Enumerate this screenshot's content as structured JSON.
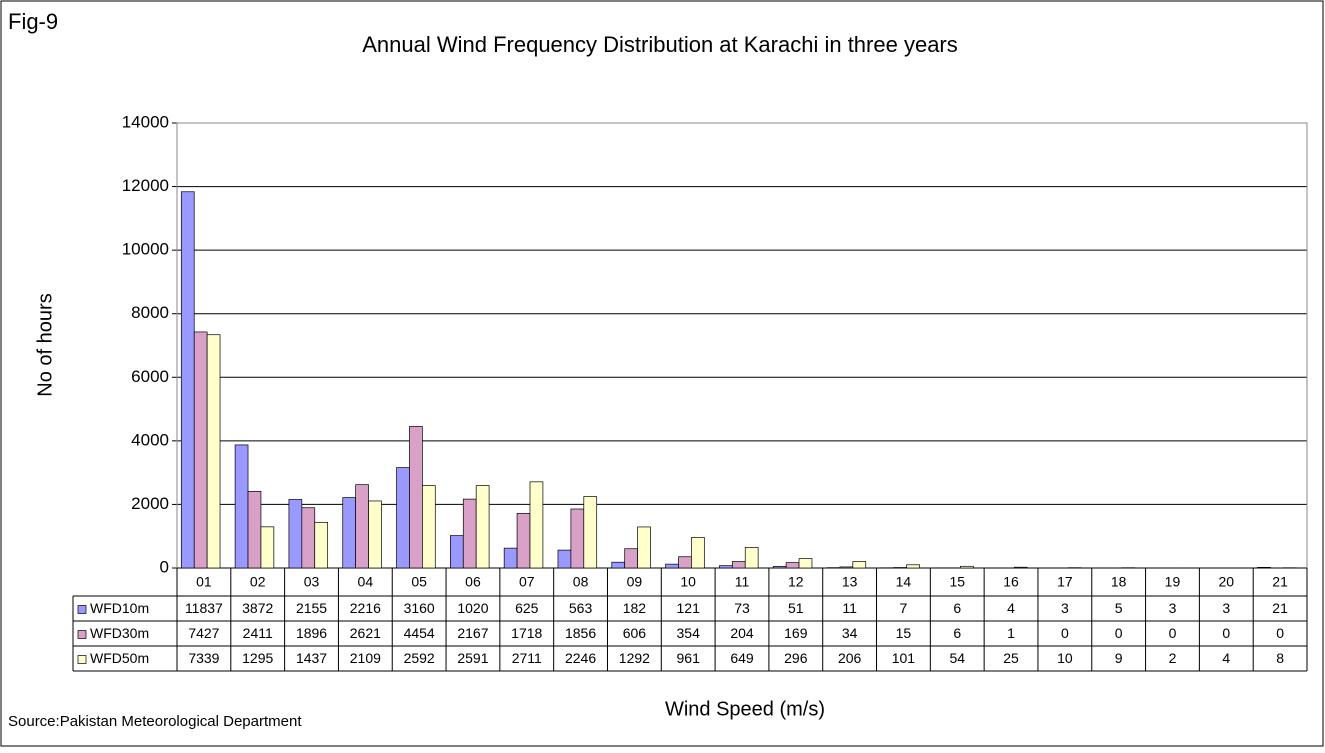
{
  "chart_data": {
    "type": "bar",
    "figure_label": "Fig-9",
    "title": "Annual Wind Frequency Distribution at Karachi in three years",
    "y_label": "No of hours",
    "x_label": "Wind Speed (m/s)",
    "source": "Source:Pakistan Meteorological Department",
    "categories": [
      "01",
      "02",
      "03",
      "04",
      "05",
      "06",
      "07",
      "08",
      "09",
      "10",
      "11",
      "12",
      "13",
      "14",
      "15",
      "16",
      "17",
      "18",
      "19",
      "20",
      "21"
    ],
    "series": [
      {
        "name": "WFD10m",
        "color": "#9999ff",
        "values": [
          11837,
          3872,
          2155,
          2216,
          3160,
          1020,
          625,
          563,
          182,
          121,
          73,
          51,
          11,
          7,
          6,
          4,
          3,
          5,
          3,
          3,
          21
        ]
      },
      {
        "name": "WFD30m",
        "color": "#d9a0c8",
        "values": [
          7427,
          2411,
          1896,
          2621,
          4454,
          2167,
          1718,
          1856,
          606,
          354,
          204,
          169,
          34,
          15,
          6,
          1,
          0,
          0,
          0,
          0,
          0
        ]
      },
      {
        "name": "WFD50m",
        "color": "#ffffcc",
        "values": [
          7339,
          1295,
          1437,
          2109,
          2592,
          2591,
          2711,
          2246,
          1292,
          961,
          649,
          296,
          206,
          101,
          54,
          25,
          10,
          9,
          2,
          4,
          8
        ]
      }
    ],
    "ylim": [
      0,
      14000
    ],
    "yticks": [
      0,
      2000,
      4000,
      6000,
      8000,
      10000,
      12000,
      14000
    ],
    "grid": true
  }
}
